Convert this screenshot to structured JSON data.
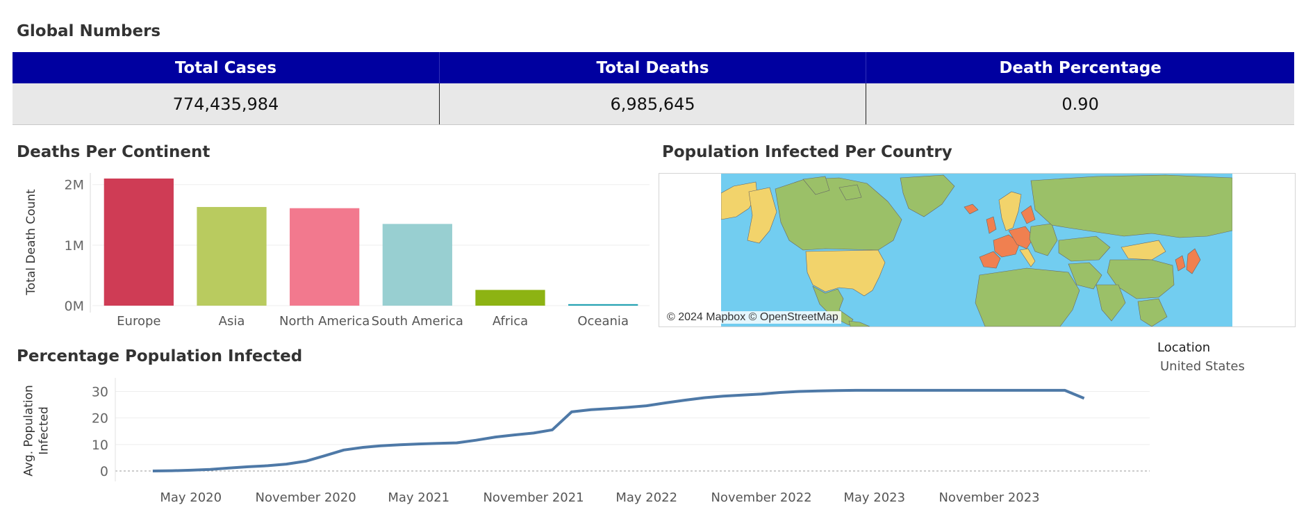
{
  "global_numbers": {
    "title": "Global Numbers",
    "headers": [
      "Total Cases",
      "Total Deaths",
      "Death Percentage"
    ],
    "values": [
      "774,435,984",
      "6,985,645",
      "0.90"
    ],
    "header_color": "#0000a0"
  },
  "deaths_title": "Deaths Per Continent",
  "map": {
    "title": "Population Infected Per Country",
    "attribution": "© 2024 Mapbox © OpenStreetMap",
    "ocean_color": "#72cdf0",
    "low_color": "#9bc068",
    "mid_color": "#f2d36b",
    "high_color": "#f08050"
  },
  "line_title": "Percentage Population Infected",
  "legend": {
    "title": "Location",
    "value": "United States"
  },
  "chart_data": [
    {
      "type": "bar",
      "categories": [
        "Europe",
        "Asia",
        "North America",
        "South America",
        "Africa",
        "Oceania"
      ],
      "values": [
        2100000,
        1630000,
        1610000,
        1350000,
        260000,
        25000
      ],
      "colors": [
        "#cf3c55",
        "#b9cb5f",
        "#f2798e",
        "#98cfd1",
        "#8db313",
        "#24a3b3"
      ],
      "ylabel": "Total Death Count",
      "ylim": [
        0,
        2100000
      ],
      "yticks": [
        {
          "value": 0,
          "label": "0M"
        },
        {
          "value": 1000000,
          "label": "1M"
        },
        {
          "value": 2000000,
          "label": "2M"
        }
      ],
      "grid": true
    },
    {
      "type": "line",
      "ylabel": "Avg. Population Infected",
      "ylim": [
        0,
        33
      ],
      "yticks": [
        0,
        10,
        20,
        30
      ],
      "xlim": [
        "2020-01-01",
        "2024-07-15"
      ],
      "xticks": [
        {
          "date": "2020-05-01",
          "label": "May 2020"
        },
        {
          "date": "2020-11-01",
          "label": "November 2020"
        },
        {
          "date": "2021-05-01",
          "label": "May 2021"
        },
        {
          "date": "2021-11-01",
          "label": "November 2021"
        },
        {
          "date": "2022-05-01",
          "label": "May 2022"
        },
        {
          "date": "2022-11-01",
          "label": "November 2022"
        },
        {
          "date": "2023-05-01",
          "label": "May 2023"
        },
        {
          "date": "2023-11-01",
          "label": "November 2023"
        }
      ],
      "series": [
        {
          "name": "United States",
          "color": "#4e79a7",
          "points": [
            [
              "2020-03-01",
              0.0
            ],
            [
              "2020-04-01",
              0.1
            ],
            [
              "2020-05-01",
              0.3
            ],
            [
              "2020-06-01",
              0.6
            ],
            [
              "2020-07-01",
              1.1
            ],
            [
              "2020-08-01",
              1.6
            ],
            [
              "2020-09-01",
              2.0
            ],
            [
              "2020-10-01",
              2.6
            ],
            [
              "2020-11-01",
              3.7
            ],
            [
              "2020-12-01",
              5.7
            ],
            [
              "2021-01-01",
              7.9
            ],
            [
              "2021-02-01",
              8.9
            ],
            [
              "2021-03-01",
              9.5
            ],
            [
              "2021-04-01",
              9.9
            ],
            [
              "2021-05-01",
              10.2
            ],
            [
              "2021-06-01",
              10.4
            ],
            [
              "2021-07-01",
              10.6
            ],
            [
              "2021-08-01",
              11.6
            ],
            [
              "2021-09-01",
              12.8
            ],
            [
              "2021-10-01",
              13.6
            ],
            [
              "2021-11-01",
              14.3
            ],
            [
              "2021-12-01",
              15.5
            ],
            [
              "2022-01-01",
              22.3
            ],
            [
              "2022-02-01",
              23.1
            ],
            [
              "2022-03-01",
              23.5
            ],
            [
              "2022-04-01",
              24.0
            ],
            [
              "2022-05-01",
              24.6
            ],
            [
              "2022-06-01",
              25.7
            ],
            [
              "2022-07-01",
              26.7
            ],
            [
              "2022-08-01",
              27.6
            ],
            [
              "2022-09-01",
              28.2
            ],
            [
              "2022-10-01",
              28.6
            ],
            [
              "2022-11-01",
              29.0
            ],
            [
              "2022-12-01",
              29.6
            ],
            [
              "2023-01-01",
              30.0
            ],
            [
              "2023-02-01",
              30.2
            ],
            [
              "2023-03-01",
              30.3
            ],
            [
              "2023-04-01",
              30.4
            ],
            [
              "2023-05-01",
              30.4
            ],
            [
              "2023-06-01",
              30.4
            ],
            [
              "2023-07-01",
              30.4
            ],
            [
              "2023-08-01",
              30.4
            ],
            [
              "2023-09-01",
              30.4
            ],
            [
              "2023-10-01",
              30.4
            ],
            [
              "2023-11-01",
              30.4
            ],
            [
              "2023-12-01",
              30.4
            ],
            [
              "2024-01-01",
              30.4
            ],
            [
              "2024-02-01",
              30.4
            ],
            [
              "2024-03-01",
              30.4
            ],
            [
              "2024-04-01",
              27.4
            ]
          ]
        }
      ]
    }
  ]
}
